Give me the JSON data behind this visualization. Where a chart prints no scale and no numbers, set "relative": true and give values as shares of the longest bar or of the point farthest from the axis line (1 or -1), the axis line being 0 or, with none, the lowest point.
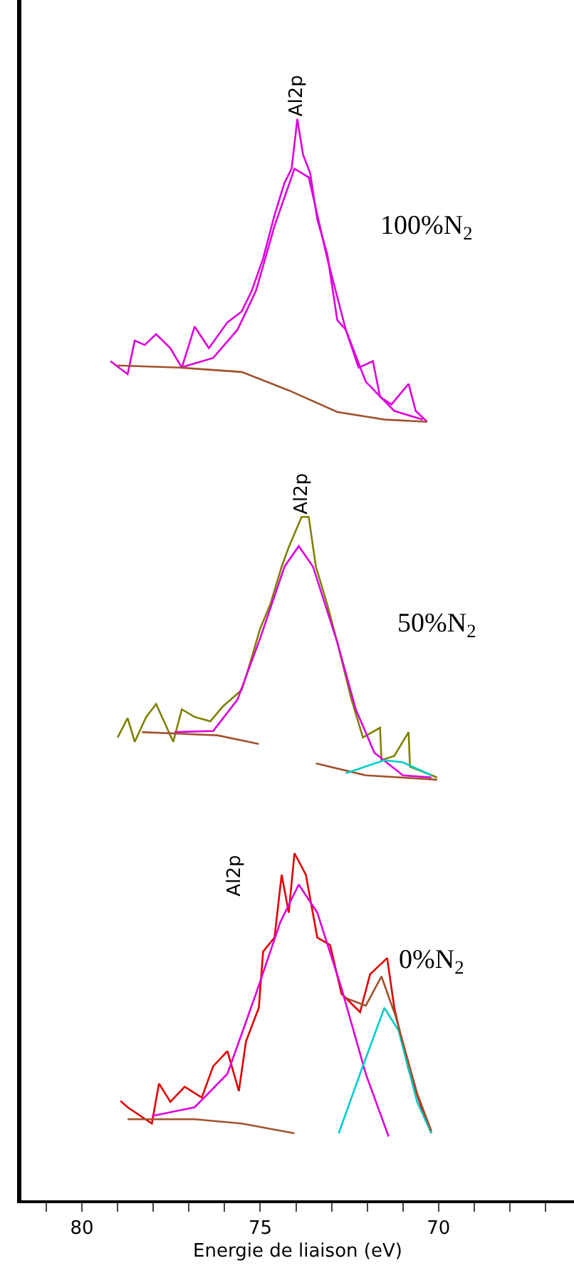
{
  "chart_data": {
    "type": "line",
    "relative": true,
    "xlabel": "Energie de liaison (eV)",
    "xlim": [
      81.7,
      66.2
    ],
    "xticks": [
      {
        "value": 81,
        "label": null
      },
      80,
      {
        "value": 79,
        "label": null
      },
      {
        "value": 78,
        "label": null
      },
      {
        "value": 77,
        "label": null
      },
      {
        "value": 76,
        "label": null
      },
      75,
      {
        "value": 74,
        "label": null
      },
      {
        "value": 73,
        "label": null
      },
      {
        "value": 72,
        "label": null
      },
      {
        "value": 71,
        "label": null
      },
      70,
      {
        "value": 69,
        "label": null
      },
      {
        "value": 68,
        "label": null
      },
      {
        "value": 67,
        "label": null
      }
    ],
    "legend": false,
    "marker": "none",
    "line_style": "solid",
    "series": [
      {
        "name": "100%N$_{2}$",
        "color": "#dd00dd",
        "x": [
          79.2,
          78.72,
          78.52,
          78.24,
          77.92,
          77.52,
          77.2,
          76.84,
          76.44,
          75.92,
          75.52,
          75.24,
          74.92,
          74.6,
          74.32,
          74.12,
          73.96,
          73.8,
          73.6,
          73.4,
          73.12,
          72.84,
          72.6,
          72.24,
          71.84,
          71.64,
          71.32,
          70.84,
          70.64,
          70.32
        ],
        "values": [
          0.776,
          0.764,
          0.795,
          0.791,
          0.801,
          0.788,
          0.77,
          0.808,
          0.788,
          0.812,
          0.822,
          0.841,
          0.871,
          0.911,
          0.941,
          0.954,
          1.0,
          0.967,
          0.95,
          0.907,
          0.875,
          0.814,
          0.805,
          0.77,
          0.776,
          0.743,
          0.736,
          0.755,
          0.73,
          0.72
        ]
      },
      {
        "color": "#dd00dd",
        "x": [
          77.24,
          76.32,
          75.64,
          75.12,
          74.6,
          74.04,
          73.64,
          73.12,
          72.6,
          72.04,
          71.24,
          70.44
        ],
        "values": [
          0.77,
          0.779,
          0.805,
          0.841,
          0.901,
          0.954,
          0.946,
          0.871,
          0.805,
          0.757,
          0.73,
          0.722
        ]
      },
      {
        "color": "#a0522d",
        "x": [
          79.0,
          77.24,
          75.52,
          74.2,
          72.84,
          71.52,
          70.32
        ],
        "values": [
          0.772,
          0.77,
          0.766,
          0.749,
          0.729,
          0.722,
          0.72
        ]
      },
      {
        "name": "50%N$_{2}$",
        "color": "#808000",
        "x": [
          79.0,
          78.72,
          78.52,
          78.2,
          77.92,
          77.44,
          77.2,
          76.84,
          76.4,
          76.04,
          75.52,
          75.32,
          75.0,
          74.72,
          74.4,
          74.2,
          73.84,
          73.64,
          73.44,
          73.12,
          72.84,
          72.44,
          72.12,
          71.64,
          71.6,
          71.24,
          70.84,
          70.8,
          70.04
        ],
        "values": [
          0.428,
          0.446,
          0.424,
          0.447,
          0.459,
          0.424,
          0.454,
          0.447,
          0.443,
          0.457,
          0.472,
          0.493,
          0.529,
          0.551,
          0.586,
          0.604,
          0.632,
          0.632,
          0.586,
          0.551,
          0.516,
          0.463,
          0.428,
          0.437,
          0.407,
          0.411,
          0.433,
          0.401,
          0.391
        ]
      },
      {
        "color": "#dd00dd",
        "x": [
          77.4,
          76.32,
          75.64,
          75.0,
          74.32,
          73.92,
          73.52,
          72.84,
          72.32,
          71.8,
          71.0,
          70.2
        ],
        "values": [
          0.433,
          0.434,
          0.463,
          0.52,
          0.586,
          0.605,
          0.586,
          0.516,
          0.454,
          0.414,
          0.393,
          0.391
        ]
      },
      {
        "color": "#a0522d",
        "x": [
          78.32,
          76.2,
          75.04,
          74.2,
          73.44,
          72.04,
          70.04
        ],
        "values": [
          0.433,
          0.43,
          0.422,
          null,
          0.404,
          0.393,
          0.389
        ]
      },
      {
        "color": "#00cccc",
        "x": [
          72.6,
          71.52,
          71.0,
          70.2
        ],
        "values": [
          0.395,
          0.407,
          0.405,
          0.393
        ]
      },
      {
        "name": "0%N$_{2}$",
        "color": "#e00000",
        "x": [
          78.92,
          78.72,
          78.04,
          77.84,
          77.52,
          77.12,
          76.64,
          76.32,
          75.92,
          75.6,
          75.4,
          75.04,
          74.92,
          74.6,
          74.4,
          74.2,
          74.04,
          73.72,
          73.4,
          73.04,
          72.72,
          72.2,
          71.92,
          71.44,
          71.24,
          70.84,
          70.44,
          70.2
        ],
        "values": [
          0.092,
          0.086,
          0.071,
          0.108,
          0.091,
          0.105,
          0.095,
          0.124,
          0.138,
          0.101,
          0.147,
          0.178,
          0.23,
          0.243,
          0.301,
          0.266,
          0.321,
          0.301,
          0.243,
          0.236,
          0.191,
          0.174,
          0.209,
          0.224,
          0.178,
          0.121,
          0.082,
          0.062
        ]
      },
      {
        "color": "#dd00dd",
        "x": [
          78.04,
          76.84,
          75.92,
          75.12,
          74.44,
          73.92,
          73.4,
          72.72,
          72.04,
          71.4
        ],
        "values": [
          0.078,
          0.086,
          0.117,
          0.191,
          0.257,
          0.292,
          0.266,
          0.196,
          0.117,
          0.059
        ]
      },
      {
        "color": "#00cccc",
        "x": [
          72.8,
          72.2,
          71.52,
          71.12,
          70.6,
          70.2
        ],
        "values": [
          0.062,
          0.117,
          0.178,
          0.157,
          0.091,
          0.062
        ]
      },
      {
        "color": "#a0522d",
        "x": [
          78.72,
          76.84,
          75.52,
          74.04
        ],
        "values": [
          0.075,
          0.075,
          0.071,
          0.062
        ]
      },
      {
        "color": "#a0522d",
        "x": [
          72.6,
          72.04,
          71.6,
          71.2,
          70.6,
          70.2
        ],
        "values": [
          0.187,
          0.18,
          0.207,
          0.17,
          0.099,
          0.064
        ]
      }
    ],
    "annotations": [
      {
        "text": "Al2p",
        "x": 73.96,
        "y": 1.0
      },
      {
        "text": "Al2p",
        "x": 73.84,
        "y": 0.632
      },
      "Al2p"
    ]
  }
}
